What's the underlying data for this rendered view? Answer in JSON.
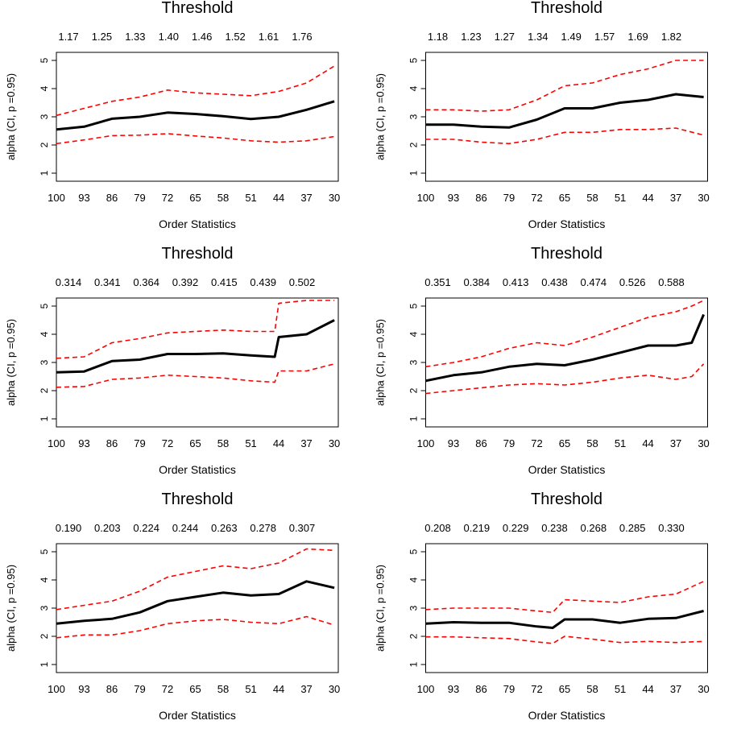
{
  "chart_data": [
    {
      "type": "line",
      "title": "Threshold",
      "threshold_labels": [
        "1.17",
        "1.25",
        "1.33",
        "1.40",
        "1.46",
        "1.52",
        "1.61",
        "1.76"
      ],
      "xlabel": "Order Statistics",
      "ylabel": "alpha (CI, p =0.95)",
      "x_ticks": [
        "100",
        "93",
        "86",
        "79",
        "72",
        "65",
        "58",
        "51",
        "44",
        "37",
        "30"
      ],
      "y_ticks": [
        "1",
        "2",
        "3",
        "4",
        "5"
      ],
      "xlim": [
        100,
        29
      ],
      "ylim": [
        1,
        5
      ],
      "x": [
        100,
        93,
        86,
        79,
        72,
        65,
        58,
        51,
        44,
        37,
        30
      ],
      "series": [
        {
          "role": "estimate",
          "style": "solid",
          "color": "#000000",
          "values": [
            2.55,
            2.65,
            2.93,
            3.0,
            3.15,
            3.1,
            3.02,
            2.92,
            3.0,
            3.25,
            3.55
          ]
        },
        {
          "role": "upper",
          "style": "dashed",
          "color": "#ff0000",
          "values": [
            3.05,
            3.3,
            3.55,
            3.7,
            3.95,
            3.85,
            3.8,
            3.75,
            3.9,
            4.2,
            4.8
          ]
        },
        {
          "role": "lower",
          "style": "dashed",
          "color": "#ff0000",
          "values": [
            2.05,
            2.18,
            2.33,
            2.35,
            2.4,
            2.32,
            2.25,
            2.15,
            2.1,
            2.15,
            2.3
          ]
        }
      ]
    },
    {
      "type": "line",
      "title": "Threshold",
      "threshold_labels": [
        "1.18",
        "1.23",
        "1.27",
        "1.34",
        "1.49",
        "1.57",
        "1.69",
        "1.82"
      ],
      "xlabel": "Order Statistics",
      "ylabel": "alpha (CI, p =0.95)",
      "x_ticks": [
        "100",
        "93",
        "86",
        "79",
        "72",
        "65",
        "58",
        "51",
        "44",
        "37",
        "30"
      ],
      "y_ticks": [
        "1",
        "2",
        "3",
        "4",
        "5"
      ],
      "xlim": [
        100,
        29
      ],
      "ylim": [
        1,
        5
      ],
      "x": [
        100,
        93,
        86,
        79,
        72,
        65,
        58,
        51,
        44,
        37,
        30
      ],
      "series": [
        {
          "role": "estimate",
          "style": "solid",
          "color": "#000000",
          "values": [
            2.72,
            2.72,
            2.65,
            2.62,
            2.9,
            3.3,
            3.3,
            3.5,
            3.6,
            3.8,
            3.7
          ]
        },
        {
          "role": "upper",
          "style": "dashed",
          "color": "#ff0000",
          "values": [
            3.25,
            3.25,
            3.2,
            3.25,
            3.6,
            4.1,
            4.2,
            4.5,
            4.7,
            5.0,
            5.0
          ]
        },
        {
          "role": "lower",
          "style": "dashed",
          "color": "#ff0000",
          "values": [
            2.2,
            2.2,
            2.1,
            2.05,
            2.2,
            2.45,
            2.45,
            2.55,
            2.55,
            2.6,
            2.35
          ]
        }
      ]
    },
    {
      "type": "line",
      "title": "Threshold",
      "threshold_labels": [
        "0.314",
        "0.341",
        "0.364",
        "0.392",
        "0.415",
        "0.439",
        "0.502"
      ],
      "xlabel": "Order Statistics",
      "ylabel": "alpha (CI, p =0.95)",
      "x_ticks": [
        "100",
        "93",
        "86",
        "79",
        "72",
        "65",
        "58",
        "51",
        "44",
        "37",
        "30"
      ],
      "y_ticks": [
        "1",
        "2",
        "3",
        "4",
        "5"
      ],
      "xlim": [
        100,
        29
      ],
      "ylim": [
        1,
        5
      ],
      "x": [
        100,
        93,
        86,
        79,
        72,
        65,
        58,
        51,
        45,
        44,
        37,
        30
      ],
      "series": [
        {
          "role": "estimate",
          "style": "solid",
          "color": "#000000",
          "values": [
            2.65,
            2.68,
            3.05,
            3.1,
            3.3,
            3.3,
            3.32,
            3.25,
            3.2,
            3.9,
            4.0,
            4.5
          ]
        },
        {
          "role": "upper",
          "style": "dashed",
          "color": "#ff0000",
          "values": [
            3.15,
            3.2,
            3.7,
            3.85,
            4.05,
            4.1,
            4.15,
            4.1,
            4.1,
            5.1,
            5.2,
            5.2
          ]
        },
        {
          "role": "lower",
          "style": "dashed",
          "color": "#ff0000",
          "values": [
            2.12,
            2.15,
            2.4,
            2.45,
            2.55,
            2.5,
            2.45,
            2.35,
            2.3,
            2.7,
            2.7,
            2.95
          ]
        }
      ]
    },
    {
      "type": "line",
      "title": "Threshold",
      "threshold_labels": [
        "0.351",
        "0.384",
        "0.413",
        "0.438",
        "0.474",
        "0.526",
        "0.588"
      ],
      "xlabel": "Order Statistics",
      "ylabel": "alpha (CI, p =0.95)",
      "x_ticks": [
        "100",
        "93",
        "86",
        "79",
        "72",
        "65",
        "58",
        "51",
        "44",
        "37",
        "30"
      ],
      "y_ticks": [
        "1",
        "2",
        "3",
        "4",
        "5"
      ],
      "xlim": [
        100,
        29
      ],
      "ylim": [
        1,
        5
      ],
      "x": [
        100,
        93,
        86,
        79,
        72,
        65,
        58,
        51,
        44,
        37,
        33,
        30
      ],
      "series": [
        {
          "role": "estimate",
          "style": "solid",
          "color": "#000000",
          "values": [
            2.35,
            2.55,
            2.65,
            2.85,
            2.95,
            2.9,
            3.1,
            3.35,
            3.6,
            3.6,
            3.7,
            4.7
          ]
        },
        {
          "role": "upper",
          "style": "dashed",
          "color": "#ff0000",
          "values": [
            2.85,
            3.0,
            3.2,
            3.5,
            3.7,
            3.6,
            3.9,
            4.25,
            4.6,
            4.8,
            5.0,
            5.2
          ]
        },
        {
          "role": "lower",
          "style": "dashed",
          "color": "#ff0000",
          "values": [
            1.9,
            2.0,
            2.1,
            2.2,
            2.25,
            2.2,
            2.3,
            2.45,
            2.55,
            2.4,
            2.5,
            2.95
          ]
        }
      ]
    },
    {
      "type": "line",
      "title": "Threshold",
      "threshold_labels": [
        "0.190",
        "0.203",
        "0.224",
        "0.244",
        "0.263",
        "0.278",
        "0.307"
      ],
      "xlabel": "Order Statistics",
      "ylabel": "alpha (CI, p =0.95)",
      "x_ticks": [
        "100",
        "93",
        "86",
        "79",
        "72",
        "65",
        "58",
        "51",
        "44",
        "37",
        "30"
      ],
      "y_ticks": [
        "1",
        "2",
        "3",
        "4",
        "5"
      ],
      "xlim": [
        100,
        29
      ],
      "ylim": [
        1,
        5
      ],
      "x": [
        100,
        93,
        86,
        79,
        72,
        65,
        58,
        51,
        44,
        37,
        30
      ],
      "series": [
        {
          "role": "estimate",
          "style": "solid",
          "color": "#000000",
          "values": [
            2.45,
            2.55,
            2.62,
            2.85,
            3.25,
            3.4,
            3.55,
            3.45,
            3.5,
            3.95,
            3.72
          ]
        },
        {
          "role": "upper",
          "style": "dashed",
          "color": "#ff0000",
          "values": [
            2.95,
            3.1,
            3.25,
            3.6,
            4.1,
            4.3,
            4.5,
            4.4,
            4.6,
            5.1,
            5.05
          ]
        },
        {
          "role": "lower",
          "style": "dashed",
          "color": "#ff0000",
          "values": [
            1.95,
            2.05,
            2.05,
            2.2,
            2.45,
            2.55,
            2.6,
            2.5,
            2.45,
            2.7,
            2.4
          ]
        }
      ]
    },
    {
      "type": "line",
      "title": "Threshold",
      "threshold_labels": [
        "0.208",
        "0.219",
        "0.229",
        "0.238",
        "0.268",
        "0.285",
        "0.330"
      ],
      "xlabel": "Order Statistics",
      "ylabel": "alpha (CI, p =0.95)",
      "x_ticks": [
        "100",
        "93",
        "86",
        "79",
        "72",
        "65",
        "58",
        "51",
        "44",
        "37",
        "30"
      ],
      "y_ticks": [
        "1",
        "2",
        "3",
        "4",
        "5"
      ],
      "xlim": [
        100,
        29
      ],
      "ylim": [
        1,
        5
      ],
      "x": [
        100,
        93,
        86,
        79,
        72,
        68,
        65,
        58,
        51,
        44,
        37,
        30
      ],
      "series": [
        {
          "role": "estimate",
          "style": "solid",
          "color": "#000000",
          "values": [
            2.45,
            2.5,
            2.48,
            2.48,
            2.35,
            2.3,
            2.6,
            2.6,
            2.48,
            2.62,
            2.65,
            2.9
          ]
        },
        {
          "role": "upper",
          "style": "dashed",
          "color": "#ff0000",
          "values": [
            2.95,
            3.0,
            3.0,
            3.0,
            2.9,
            2.85,
            3.3,
            3.25,
            3.2,
            3.4,
            3.5,
            3.95
          ]
        },
        {
          "role": "lower",
          "style": "dashed",
          "color": "#ff0000",
          "values": [
            1.98,
            1.98,
            1.95,
            1.92,
            1.8,
            1.75,
            2.0,
            1.9,
            1.78,
            1.82,
            1.78,
            1.82
          ]
        }
      ]
    }
  ]
}
